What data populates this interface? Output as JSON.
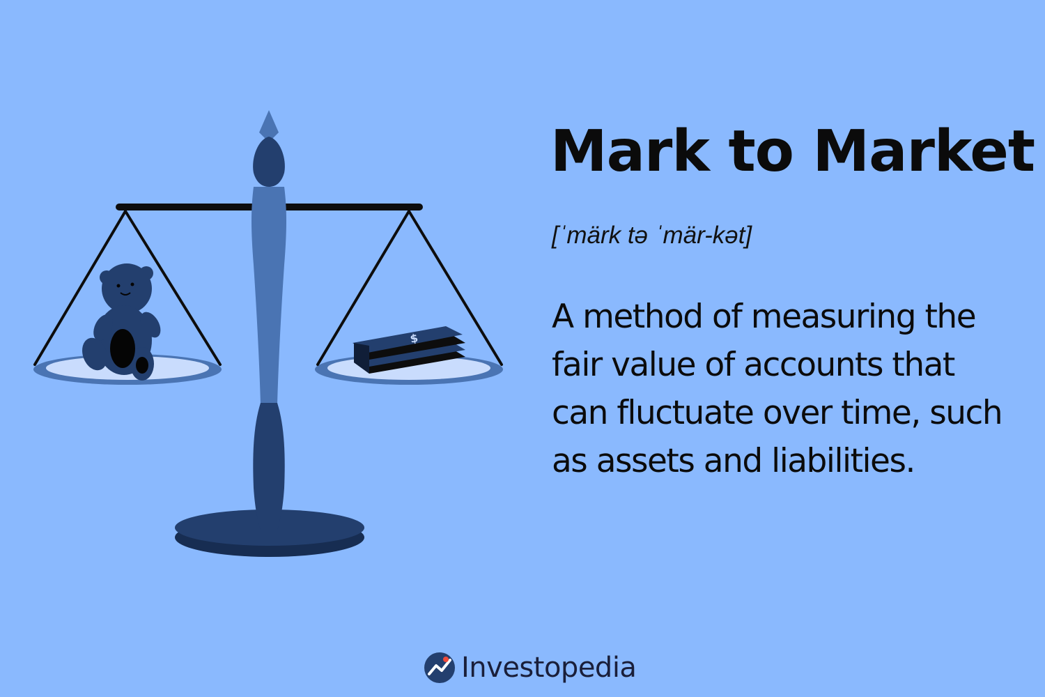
{
  "colors": {
    "background": "#8ab9fe",
    "scale_dark": "#233f6e",
    "scale_mid": "#4a74b3",
    "pan_fill": "#c9dcfd",
    "text": "#0b0b0b",
    "brand_dot": "#f04b3a"
  },
  "icons": {
    "scale": "balance-scale-icon",
    "teddy": "teddy-bear-icon",
    "cash": "cash-stack-icon",
    "logo": "investopedia-logo-icon"
  },
  "header": {
    "title": "Mark to Market",
    "pronunciation": "[ˈmärk tə ˈmär-kət]"
  },
  "body": {
    "definition": "A method of measuring the fair value of accounts that can fluctuate over time, such as assets and liabilities."
  },
  "footer": {
    "brand": "Investopedia"
  }
}
